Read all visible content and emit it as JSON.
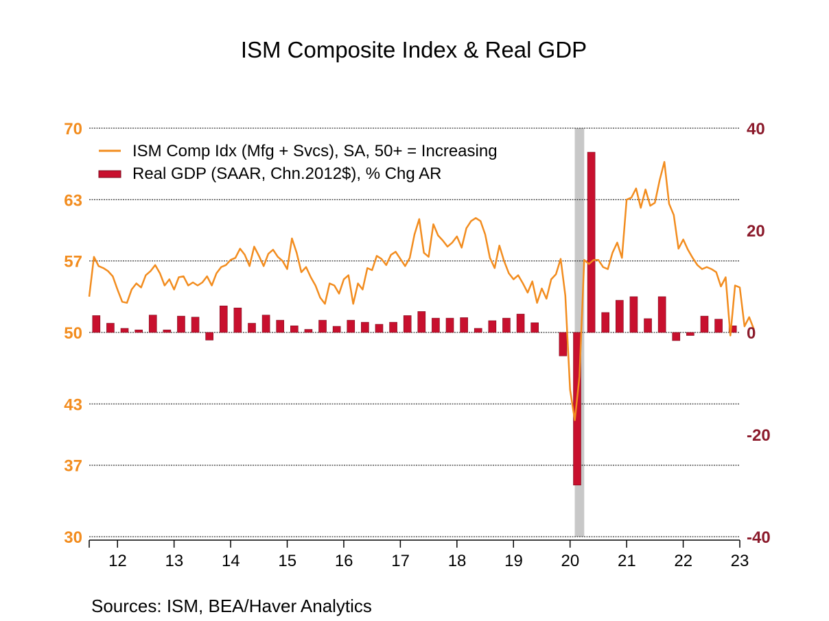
{
  "chart_data": {
    "title": "ISM Composite Index & Real GDP",
    "source": "Sources:   ISM, BEA/Haver Analytics",
    "colors": {
      "line": "#F28C1E",
      "bars": "#C8102E",
      "left_axis": "#F28C1E",
      "right_axis": "#8B1A2B",
      "recession": "#C8C8C8"
    },
    "legend": [
      {
        "label": "ISM Comp Idx (Mfg + Svcs), SA, 50+ = Increasing"
      },
      {
        "label": "Real GDP (SAAR, Chn.2012$), % Chg AR"
      }
    ],
    "left_axis": {
      "min": 30,
      "max": 70,
      "ticks": [
        30,
        37,
        43,
        50,
        57,
        63,
        70
      ]
    },
    "right_axis": {
      "min": -40,
      "max": 40,
      "ticks": [
        -40,
        -20,
        0,
        20,
        40
      ]
    },
    "x_axis": {
      "start": 2011.5,
      "end": 2023.0,
      "tick_labels": [
        "12",
        "13",
        "14",
        "15",
        "16",
        "17",
        "18",
        "19",
        "20",
        "21",
        "22",
        "23"
      ]
    },
    "recession": {
      "start": 2020.083,
      "end": 2020.25
    },
    "series": [
      {
        "type": "line",
        "axis": "left",
        "start": 2011.5,
        "step_months": 1,
        "values": [
          53.5,
          57.4,
          56.5,
          56.3,
          56.0,
          55.5,
          54.2,
          53.0,
          52.9,
          54.2,
          54.8,
          54.4,
          55.6,
          56.0,
          56.6,
          55.8,
          54.6,
          55.2,
          54.2,
          55.4,
          55.5,
          54.6,
          54.9,
          54.6,
          54.9,
          55.5,
          54.6,
          55.8,
          56.4,
          56.6,
          57.1,
          57.3,
          58.2,
          57.6,
          56.5,
          58.4,
          57.5,
          56.5,
          57.7,
          58.1,
          57.4,
          57.0,
          56.2,
          59.2,
          57.8,
          55.9,
          56.4,
          55.4,
          54.6,
          53.4,
          52.8,
          54.8,
          54.6,
          53.8,
          55.2,
          55.6,
          52.8,
          54.8,
          54.2,
          56.3,
          56.1,
          57.5,
          57.2,
          56.6,
          57.6,
          57.9,
          57.2,
          56.5,
          57.3,
          59.6,
          61.1,
          57.8,
          57.4,
          60.6,
          59.5,
          59.0,
          58.4,
          58.8,
          59.4,
          58.3,
          60.2,
          60.9,
          61.2,
          60.9,
          59.6,
          57.3,
          56.3,
          58.5,
          57.0,
          55.8,
          55.2,
          55.6,
          54.8,
          53.9,
          55.0,
          52.9,
          54.3,
          53.3,
          55.2,
          55.7,
          57.2,
          53.6,
          44.4,
          41.4,
          45.7,
          57.1,
          56.7,
          57.1,
          57.1,
          56.4,
          56.2,
          57.8,
          58.8,
          57.3,
          63.0,
          63.2,
          64.1,
          62.2,
          64.0,
          62.4,
          62.7,
          64.9,
          66.7,
          62.6,
          61.5,
          58.2,
          59.1,
          58.1,
          57.3,
          56.6,
          56.2,
          56.4,
          56.2,
          55.9,
          54.5,
          55.4,
          49.7,
          54.6,
          54.4,
          50.6,
          51.5,
          50.3
        ]
      },
      {
        "type": "bar",
        "axis": "right",
        "values": [
          {
            "x": 2011.625,
            "y": 3.3
          },
          {
            "x": 2011.875,
            "y": 1.8
          },
          {
            "x": 2012.125,
            "y": 0.8
          },
          {
            "x": 2012.375,
            "y": 0.5
          },
          {
            "x": 2012.625,
            "y": 3.4
          },
          {
            "x": 2012.875,
            "y": 0.5
          },
          {
            "x": 2013.125,
            "y": 3.2
          },
          {
            "x": 2013.375,
            "y": 3.0
          },
          {
            "x": 2013.625,
            "y": -1.5
          },
          {
            "x": 2013.875,
            "y": 5.2
          },
          {
            "x": 2014.125,
            "y": 4.8
          },
          {
            "x": 2014.375,
            "y": 1.8
          },
          {
            "x": 2014.625,
            "y": 3.4
          },
          {
            "x": 2014.875,
            "y": 2.4
          },
          {
            "x": 2015.125,
            "y": 1.3
          },
          {
            "x": 2015.375,
            "y": 0.6
          },
          {
            "x": 2015.625,
            "y": 2.4
          },
          {
            "x": 2015.875,
            "y": 1.2
          },
          {
            "x": 2016.125,
            "y": 2.4
          },
          {
            "x": 2016.375,
            "y": 2.0
          },
          {
            "x": 2016.625,
            "y": 1.6
          },
          {
            "x": 2016.875,
            "y": 2.0
          },
          {
            "x": 2017.125,
            "y": 3.3
          },
          {
            "x": 2017.375,
            "y": 4.1
          },
          {
            "x": 2017.625,
            "y": 2.8
          },
          {
            "x": 2017.875,
            "y": 2.8
          },
          {
            "x": 2018.125,
            "y": 2.9
          },
          {
            "x": 2018.375,
            "y": 0.8
          },
          {
            "x": 2018.625,
            "y": 2.3
          },
          {
            "x": 2018.875,
            "y": 2.8
          },
          {
            "x": 2019.125,
            "y": 3.6
          },
          {
            "x": 2019.375,
            "y": 1.9
          },
          {
            "x": 2019.875,
            "y": -4.6
          },
          {
            "x": 2020.125,
            "y": -29.9
          },
          {
            "x": 2020.375,
            "y": 35.3
          },
          {
            "x": 2020.625,
            "y": 3.9
          },
          {
            "x": 2020.875,
            "y": 6.3
          },
          {
            "x": 2021.125,
            "y": 7.0
          },
          {
            "x": 2021.375,
            "y": 2.7
          },
          {
            "x": 2021.625,
            "y": 7.0
          },
          {
            "x": 2021.875,
            "y": -1.6
          },
          {
            "x": 2022.125,
            "y": -0.6
          },
          {
            "x": 2022.375,
            "y": 3.2
          },
          {
            "x": 2022.625,
            "y": 2.6
          },
          {
            "x": 2022.875,
            "y": 1.3
          }
        ]
      }
    ]
  }
}
